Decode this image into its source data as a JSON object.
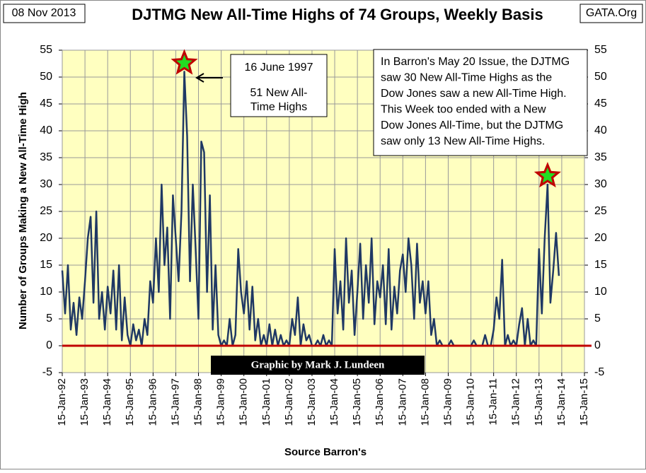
{
  "chart_data": {
    "type": "line",
    "title": "DJTMG New All-Time Highs of 74 Groups, Weekly Basis",
    "date_label": "08 Nov 2013",
    "source_tag": "GATA.Org",
    "credit": "Graphic by Mark J. Lundeen",
    "x_label": "Source Barron's",
    "y_label": "Number of Groups Making a New All-Time High",
    "annotation_peak": [
      "16 June 1997",
      "51 New All-",
      "Time Highs"
    ],
    "annotation_note": [
      "In Barron's May 20 Issue, the DJTMG",
      "saw 30 New All-Time Highs as the",
      "Dow Jones saw a new All-Time High.",
      "This Week too ended with a New",
      "Dow Jones All-Time, but the DJTMG",
      "saw  only 13 New All-Time Highs."
    ],
    "xlim": [
      1992,
      2015
    ],
    "xticks": [
      {
        "value": 1992,
        "label": "15-Jan-92"
      },
      {
        "value": 1993,
        "label": "15-Jan-93"
      },
      {
        "value": 1994,
        "label": "15-Jan-94"
      },
      {
        "value": 1995,
        "label": "15-Jan-95"
      },
      {
        "value": 1996,
        "label": "15-Jan-96"
      },
      {
        "value": 1997,
        "label": "15-Jan-97"
      },
      {
        "value": 1998,
        "label": "15-Jan-98"
      },
      {
        "value": 1999,
        "label": "15-Jan-99"
      },
      {
        "value": 2000,
        "label": "15-Jan-00"
      },
      {
        "value": 2001,
        "label": "15-Jan-01"
      },
      {
        "value": 2002,
        "label": "15-Jan-02"
      },
      {
        "value": 2003,
        "label": "15-Jan-03"
      },
      {
        "value": 2004,
        "label": "15-Jan-04"
      },
      {
        "value": 2005,
        "label": "15-Jan-05"
      },
      {
        "value": 2006,
        "label": "15-Jan-06"
      },
      {
        "value": 2007,
        "label": "15-Jan-07"
      },
      {
        "value": 2008,
        "label": "15-Jan-08"
      },
      {
        "value": 2009,
        "label": "15-Jan-09"
      },
      {
        "value": 2010,
        "label": "15-Jan-10"
      },
      {
        "value": 2011,
        "label": "15-Jan-11"
      },
      {
        "value": 2012,
        "label": "15-Jan-12"
      },
      {
        "value": 2013,
        "label": "15-Jan-13"
      },
      {
        "value": 2014,
        "label": "15-Jan-14"
      },
      {
        "value": 2015,
        "label": "15-Jan-15"
      }
    ],
    "ylim": [
      -5,
      55
    ],
    "yticks": [
      -5,
      0,
      5,
      10,
      15,
      20,
      25,
      30,
      35,
      40,
      45,
      50,
      55
    ],
    "grid": true,
    "line_color": "#1f3864",
    "zero_line_color": "#c00000",
    "plot_background": "#ffffc0",
    "x": [
      1992,
      1992.125,
      1992.25,
      1992.375,
      1992.5,
      1992.625,
      1992.75,
      1992.875,
      1993,
      1993.125,
      1993.25,
      1993.375,
      1993.5,
      1993.625,
      1993.75,
      1993.875,
      1994,
      1994.125,
      1994.25,
      1994.375,
      1994.5,
      1994.625,
      1994.75,
      1994.875,
      1995,
      1995.125,
      1995.25,
      1995.375,
      1995.5,
      1995.625,
      1995.75,
      1995.875,
      1996,
      1996.125,
      1996.25,
      1996.375,
      1996.5,
      1996.625,
      1996.75,
      1996.875,
      1997,
      1997.125,
      1997.25,
      1997.375,
      1997.5,
      1997.625,
      1997.75,
      1997.875,
      1998,
      1998.125,
      1998.25,
      1998.375,
      1998.5,
      1998.625,
      1998.75,
      1998.875,
      1999,
      1999.125,
      1999.25,
      1999.375,
      1999.5,
      1999.625,
      1999.75,
      1999.875,
      2000,
      2000.125,
      2000.25,
      2000.375,
      2000.5,
      2000.625,
      2000.75,
      2000.875,
      2001,
      2001.125,
      2001.25,
      2001.375,
      2001.5,
      2001.625,
      2001.75,
      2001.875,
      2002,
      2002.125,
      2002.25,
      2002.375,
      2002.5,
      2002.625,
      2002.75,
      2002.875,
      2003,
      2003.125,
      2003.25,
      2003.375,
      2003.5,
      2003.625,
      2003.75,
      2003.875,
      2004,
      2004.125,
      2004.25,
      2004.375,
      2004.5,
      2004.625,
      2004.75,
      2004.875,
      2005,
      2005.125,
      2005.25,
      2005.375,
      2005.5,
      2005.625,
      2005.75,
      2005.875,
      2006,
      2006.125,
      2006.25,
      2006.375,
      2006.5,
      2006.625,
      2006.75,
      2006.875,
      2007,
      2007.125,
      2007.25,
      2007.375,
      2007.5,
      2007.625,
      2007.75,
      2007.875,
      2008,
      2008.125,
      2008.25,
      2008.375,
      2008.5,
      2008.625,
      2008.75,
      2008.875,
      2009,
      2009.125,
      2009.25,
      2009.375,
      2009.5,
      2009.625,
      2009.75,
      2009.875,
      2010,
      2010.125,
      2010.25,
      2010.375,
      2010.5,
      2010.625,
      2010.75,
      2010.875,
      2011,
      2011.125,
      2011.25,
      2011.375,
      2011.5,
      2011.625,
      2011.75,
      2011.875,
      2012,
      2012.125,
      2012.25,
      2012.375,
      2012.5,
      2012.625,
      2012.75,
      2012.875,
      2013,
      2013.125,
      2013.25,
      2013.375,
      2013.5,
      2013.625,
      2013.75,
      2013.875
    ],
    "values": [
      14,
      6,
      15,
      3,
      8,
      2,
      9,
      5,
      12,
      20,
      24,
      8,
      25,
      5,
      10,
      3,
      11,
      6,
      14,
      3,
      15,
      1,
      9,
      2,
      0,
      4,
      1,
      3,
      0,
      5,
      2,
      12,
      8,
      20,
      10,
      30,
      15,
      22,
      5,
      28,
      20,
      12,
      25,
      51,
      39,
      12,
      30,
      18,
      5,
      38,
      36,
      10,
      28,
      3,
      15,
      2,
      0,
      1,
      0,
      5,
      0,
      2,
      18,
      10,
      6,
      12,
      3,
      11,
      1,
      5,
      0,
      2,
      0,
      4,
      0,
      3,
      0,
      2,
      0,
      1,
      0,
      5,
      2,
      9,
      0,
      4,
      1,
      2,
      0,
      0,
      1,
      0,
      2,
      0,
      1,
      0,
      18,
      6,
      12,
      3,
      20,
      8,
      14,
      2,
      10,
      19,
      5,
      15,
      8,
      20,
      4,
      12,
      9,
      15,
      4,
      18,
      3,
      11,
      6,
      14,
      17,
      10,
      20,
      15,
      5,
      19,
      8,
      12,
      6,
      12,
      2,
      5,
      0,
      1,
      0,
      0,
      0,
      1,
      0,
      0,
      0,
      0,
      0,
      0,
      0,
      1,
      0,
      0,
      0,
      2,
      0,
      0,
      3,
      9,
      5,
      16,
      0,
      2,
      0,
      1,
      0,
      4,
      7,
      0,
      5,
      0,
      1,
      0,
      18,
      6,
      20,
      30,
      8,
      14,
      21,
      13
    ]
  }
}
